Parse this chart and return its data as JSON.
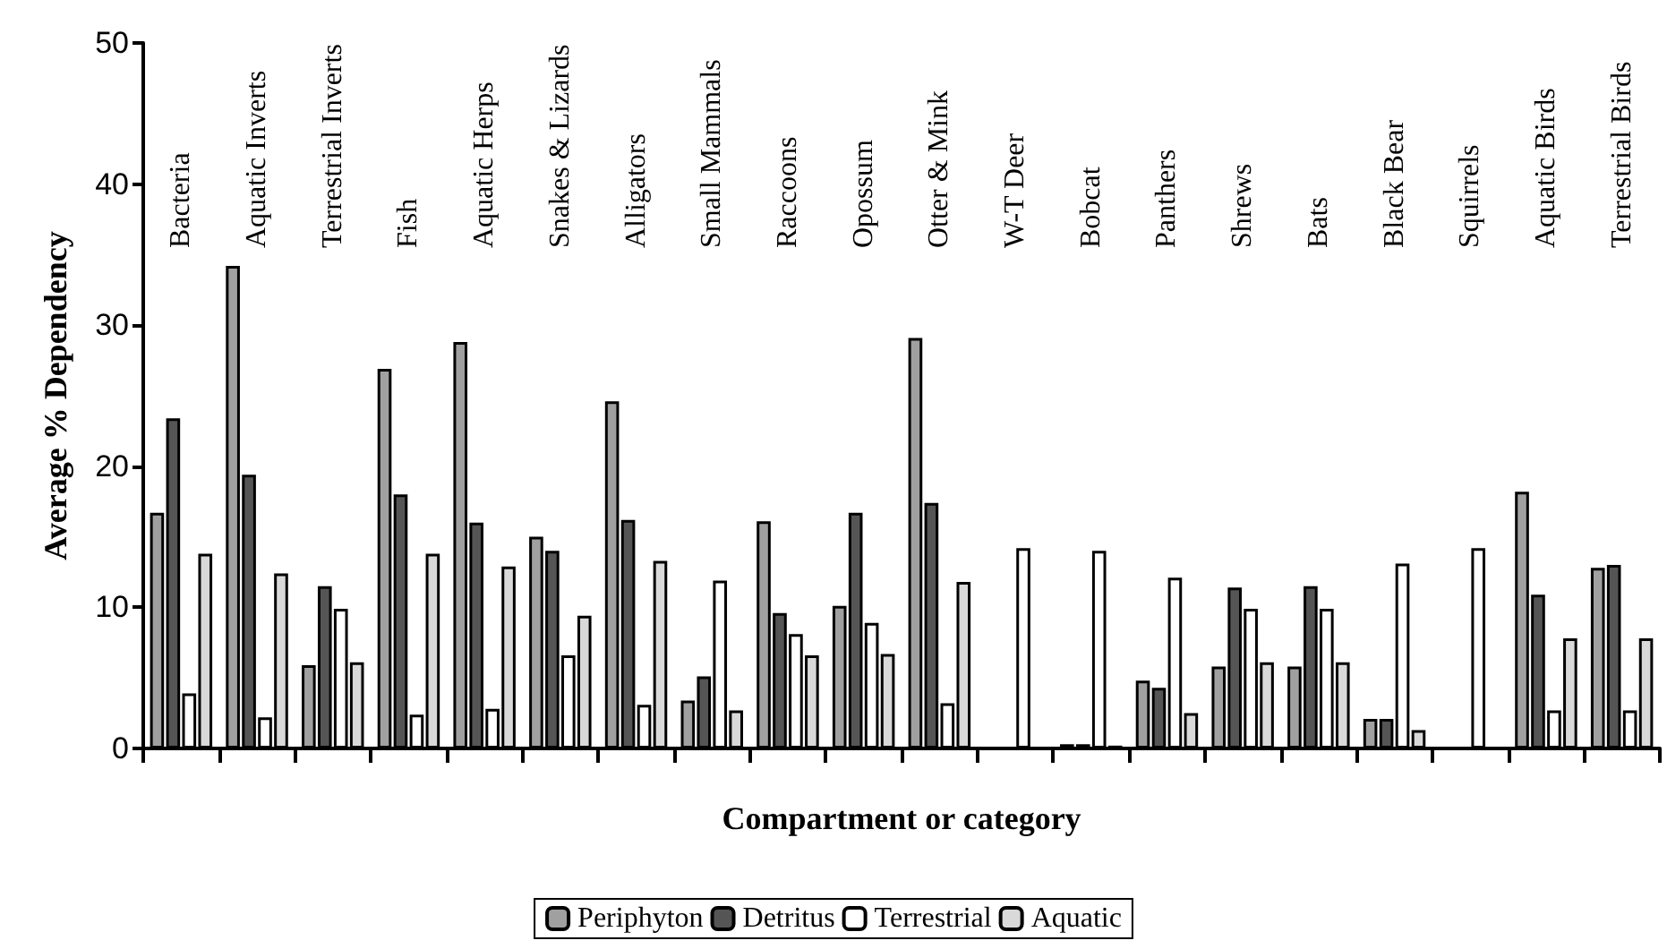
{
  "chart_data": {
    "type": "bar",
    "xlabel": "Compartment or category",
    "ylabel": "Average % Dependency",
    "categories": [
      "Bacteria",
      "Aquatic Inverts",
      "Terrestrial Inverts",
      "Fish",
      "Aquatic Herps",
      "Snakes & Lizards",
      "Alligators",
      "Small Mammals",
      "Raccoons",
      "Opossum",
      "Otter & Mink",
      "W-T Deer",
      "Bobcat",
      "Panthers",
      "Shrews",
      "Bats",
      "Black Bear",
      "Squirrels",
      "Aquatic Birds",
      "Terrestrial Birds"
    ],
    "series": [
      {
        "name": "Periphyton",
        "color": "#a0a0a0",
        "values": [
          16.7,
          34.2,
          5.9,
          26.9,
          28.8,
          15.0,
          24.6,
          3.4,
          16.1,
          10.1,
          29.1,
          0,
          0.3,
          4.8,
          5.8,
          5.8,
          2.1,
          0,
          18.2,
          12.8
        ]
      },
      {
        "name": "Detritus",
        "color": "#555555",
        "values": [
          23.4,
          19.4,
          11.5,
          18.0,
          16.0,
          14.0,
          16.2,
          5.1,
          9.6,
          16.7,
          17.4,
          0,
          0.3,
          4.3,
          11.4,
          11.5,
          2.1,
          0,
          10.9,
          13.0
        ]
      },
      {
        "name": "Terrestrial",
        "color": "#ffffff",
        "values": [
          3.9,
          2.2,
          9.9,
          2.4,
          2.8,
          6.6,
          3.1,
          11.9,
          8.1,
          8.9,
          3.2,
          14.2,
          14.0,
          12.1,
          9.9,
          9.9,
          13.1,
          14.2,
          2.7,
          2.7
        ]
      },
      {
        "name": "Aquatic",
        "color": "#d9d9d9",
        "values": [
          13.8,
          12.4,
          6.1,
          13.8,
          12.9,
          9.4,
          13.3,
          2.7,
          6.6,
          6.7,
          11.8,
          0,
          0.2,
          2.5,
          6.1,
          6.1,
          1.3,
          0,
          7.8,
          7.8
        ]
      }
    ],
    "ylim": [
      0,
      50
    ],
    "yticks": [
      0,
      10,
      20,
      30,
      40,
      50
    ],
    "grid": false,
    "legend": "bottom"
  }
}
